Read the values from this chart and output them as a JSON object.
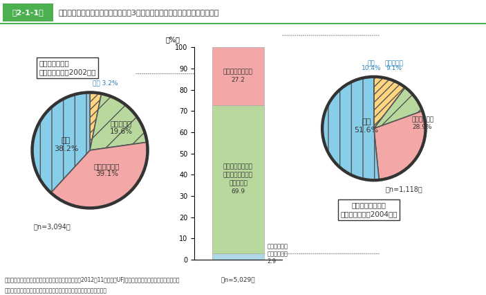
{
  "title": "第2-1-1図　事業経営方針と目指している今後（3年後程度）の市場による起業形態の分類",
  "title_box": "第2-1-1図",
  "title_text": "事業経営方針と目指している今後（3年後程度）の市場による起業形態の分類",
  "pie1_label": "地域需要創出型\n（平均起業年：2002年）",
  "pie1_n": "（n=3,094）",
  "pie1_values": [
    38.2,
    39.1,
    19.6,
    3.2
  ],
  "pie1_labels": [
    "全国\n38.2%",
    "同一都道府県\n39.1%",
    "同一市町村\n19.6%",
    "海外 3.2%"
  ],
  "pie1_colors": [
    "#87CEEB",
    "#F4A7A7",
    "#B8D89E",
    "#FFD580"
  ],
  "pie1_startangle": 90,
  "pie1_explode": [
    0,
    0,
    0,
    0.05
  ],
  "pie2_label": "グローバル成長型\n（平均起業年：2004年）",
  "pie2_n": "（n=1,118）",
  "pie2_values": [
    51.6,
    28.9,
    9.1,
    10.4
  ],
  "pie2_labels": [
    "全国\n51.6%",
    "同一都道府県\n28.9%",
    "同一市町村\n9.1%",
    "海外\n10.4%"
  ],
  "pie2_colors": [
    "#87CEEB",
    "#F4A7A7",
    "#B8D89E",
    "#FFD580"
  ],
  "bar_categories": [
    "規模の縮小・\n廃業をしたい\n2.9",
    "規模の拡大より、\n事業の安定継続を\n優先したい\n69.9",
    "規模を拡大したい\n27.2"
  ],
  "bar_values": [
    2.9,
    69.9,
    27.2
  ],
  "bar_colors": [
    "#ADD8E6",
    "#B8D89E",
    "#F4A7A7"
  ],
  "bar_n": "（n=5,029）",
  "bar_ylabel": "（%）",
  "bar_ylim": [
    0,
    100
  ],
  "bar_yticks": [
    0,
    10,
    20,
    30,
    40,
    50,
    60,
    70,
    80,
    90,
    100
  ],
  "footnote1": "資料：中小企業庁委託「起業の実態に関する調査」（2012年11月、三菱UFJリサーチ＆コンサルティング（株））",
  "footnote2": "（注）　事業経営方針については、「その他」は除いて集計している。",
  "bg_color": "#ffffff",
  "border_color": "#000000"
}
